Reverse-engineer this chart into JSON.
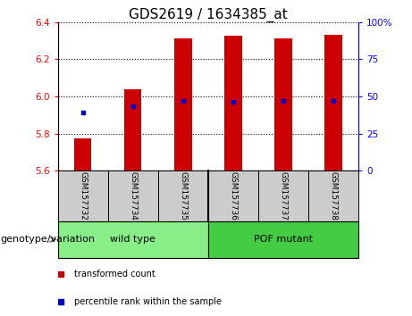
{
  "title": "GDS2619 / 1634385_at",
  "samples": [
    "GSM157732",
    "GSM157734",
    "GSM157735",
    "GSM157736",
    "GSM157737",
    "GSM157738"
  ],
  "bar_bottoms": [
    5.6,
    5.6,
    5.6,
    5.6,
    5.6,
    5.6
  ],
  "bar_tops": [
    5.775,
    6.04,
    6.31,
    6.325,
    6.31,
    6.33
  ],
  "percentile_values": [
    5.915,
    5.945,
    5.975,
    5.97,
    5.975,
    5.975
  ],
  "ylim": [
    5.6,
    6.4
  ],
  "yticks_left": [
    5.6,
    5.8,
    6.0,
    6.2,
    6.4
  ],
  "yticks_right": [
    0,
    25,
    50,
    75,
    100
  ],
  "bar_color": "#cc0000",
  "blue_color": "#0000cc",
  "sample_box_color": "#cccccc",
  "groups": [
    {
      "label": "wild type",
      "indices": [
        0,
        1,
        2
      ],
      "color": "#88ee88"
    },
    {
      "label": "POF mutant",
      "indices": [
        3,
        4,
        5
      ],
      "color": "#44cc44"
    }
  ],
  "genotype_label": "genotype/variation",
  "legend_items": [
    {
      "label": "transformed count",
      "color": "#cc0000"
    },
    {
      "label": "percentile rank within the sample",
      "color": "#0000cc"
    }
  ],
  "bar_width": 0.35,
  "title_fontsize": 11,
  "tick_fontsize": 7.5,
  "label_fontsize": 8,
  "legend_fontsize": 7,
  "sample_fontsize": 6.5,
  "group_fontsize": 8
}
